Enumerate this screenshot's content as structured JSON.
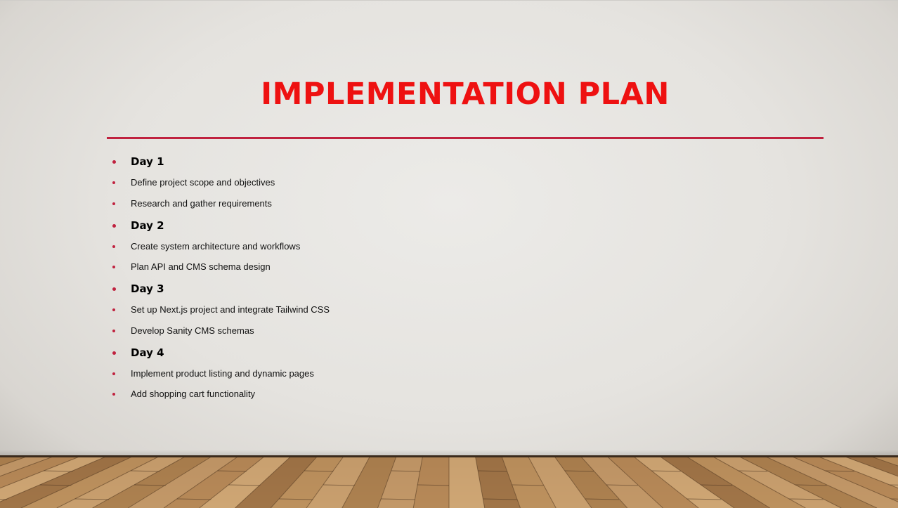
{
  "slide": {
    "title": "IMPLEMENTATION PLAN",
    "accent_color": "#ee1111",
    "rule_color": "#c0223f",
    "bullets": [
      {
        "text": "Day 1",
        "level": "heading"
      },
      {
        "text": "Define project scope and objectives",
        "level": "item"
      },
      {
        "text": "Research and gather requirements",
        "level": "item"
      },
      {
        "text": "Day 2",
        "level": "heading"
      },
      {
        "text": "Create system architecture and workflows",
        "level": "item"
      },
      {
        "text": "Plan API and CMS schema design",
        "level": "item"
      },
      {
        "text": "Day 3",
        "level": "heading"
      },
      {
        "text": "Set up Next.js project and integrate Tailwind CSS",
        "level": "item"
      },
      {
        "text": "Develop Sanity CMS schemas",
        "level": "item"
      },
      {
        "text": "Day 4",
        "level": "heading"
      },
      {
        "text": "Implement product listing and dynamic pages",
        "level": "item"
      },
      {
        "text": "Add shopping cart functionality",
        "level": "item"
      }
    ],
    "background": "wood-floor-wall-backdrop"
  }
}
